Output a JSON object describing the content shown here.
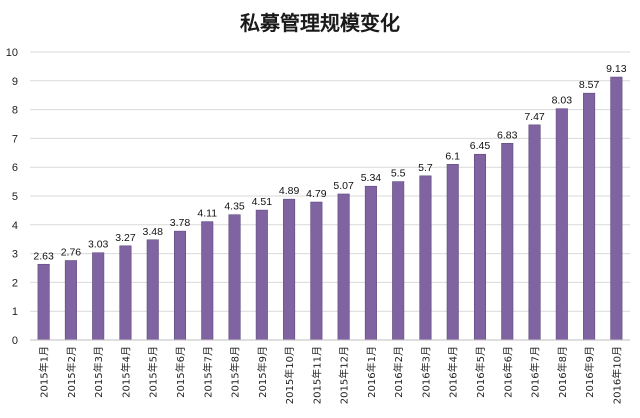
{
  "chart_data": {
    "type": "bar",
    "title": "私募管理规模变化",
    "categories": [
      "2015年1月",
      "2015年2月",
      "2015年3月",
      "2015年4月",
      "2015年5月",
      "2015年6月",
      "2015年7月",
      "2015年8月",
      "2015年9月",
      "2015年10月",
      "2015年11月",
      "2015年12月",
      "2016年1月",
      "2016年2月",
      "2016年3月",
      "2016年4月",
      "2016年5月",
      "2016年6月",
      "2016年7月",
      "2016年8月",
      "2016年9月",
      "2016年10月"
    ],
    "values": [
      2.63,
      2.76,
      3.03,
      3.27,
      3.48,
      3.78,
      4.11,
      4.35,
      4.51,
      4.89,
      4.79,
      5.07,
      5.34,
      5.5,
      5.7,
      6.1,
      6.45,
      6.83,
      7.47,
      8.03,
      8.57,
      9.13
    ],
    "value_labels": [
      "2.63",
      "2.76",
      "3.03",
      "3.27",
      "3.48",
      "3.78",
      "4.11",
      "4.35",
      "4.51",
      "4.89",
      "4.79",
      "5.07",
      "5.34",
      "5.5",
      "5.7",
      "6.1",
      "6.45",
      "6.83",
      "7.47",
      "8.03",
      "8.57",
      "9.13"
    ],
    "yticks": [
      "0",
      "1",
      "2",
      "3",
      "4",
      "5",
      "6",
      "7",
      "8",
      "9",
      "10"
    ],
    "ylim": [
      0,
      10
    ],
    "xlabel": "",
    "ylabel": "",
    "grid": true,
    "legend": "none",
    "bar_color": "#8064a2",
    "bar_border_color": "#5e4a7d",
    "grid_color": "#d9d9d9"
  }
}
